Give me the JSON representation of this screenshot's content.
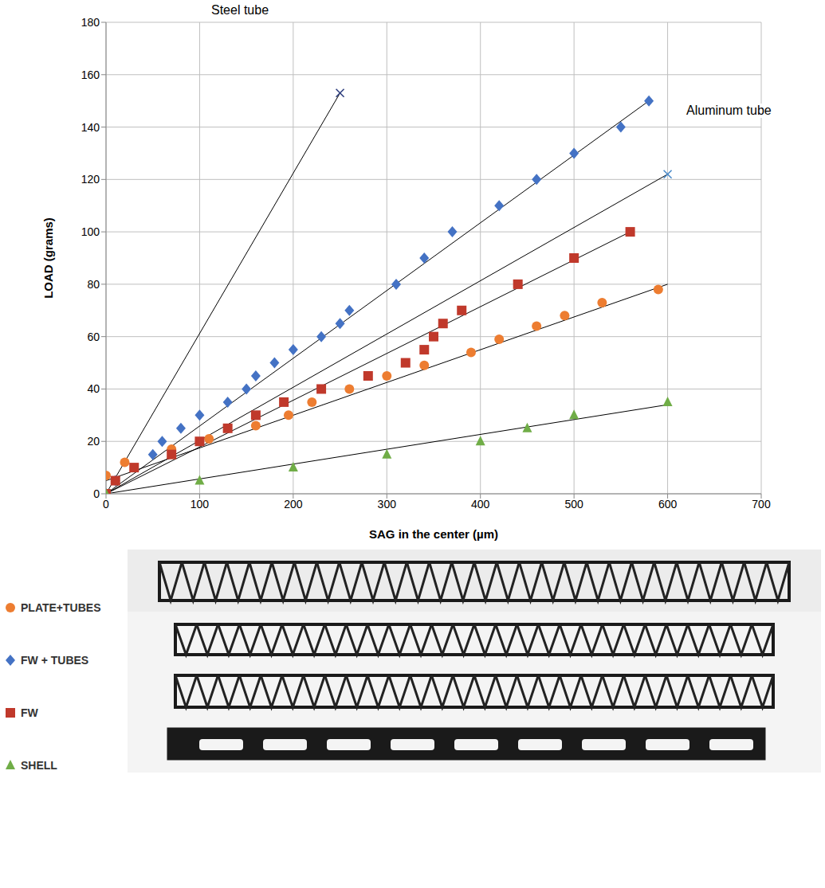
{
  "chart_data": {
    "type": "scatter",
    "x_label": "SAG in the center (µm)",
    "y_label": "LOAD (grams)",
    "xlim": [
      0,
      700
    ],
    "xticks": [
      0,
      100,
      200,
      300,
      400,
      500,
      600,
      700
    ],
    "ylim": [
      0,
      180
    ],
    "yticks": [
      0,
      20,
      40,
      60,
      80,
      100,
      120,
      140,
      160,
      180
    ],
    "grid": true,
    "legend": "bottom left",
    "series": [
      {
        "name": "PLATE+TUBES",
        "type": "scatter",
        "marker": "circle",
        "color": "#ed7d31",
        "x": [
          0,
          20,
          70,
          110,
          160,
          195,
          220,
          260,
          300,
          340,
          390,
          420,
          460,
          490,
          530,
          590
        ],
        "values": [
          7,
          12,
          17,
          21,
          26,
          30,
          35,
          40,
          45,
          49,
          54,
          59,
          64,
          68,
          73,
          78
        ],
        "fit": {
          "x": [
            0,
            600
          ],
          "values": [
            5,
            80
          ]
        }
      },
      {
        "name": "FW + TUBES",
        "type": "scatter",
        "marker": "diamond",
        "color": "#4472c4",
        "x": [
          0,
          10,
          50,
          60,
          80,
          100,
          130,
          150,
          160,
          180,
          200,
          230,
          250,
          260,
          310,
          340,
          370,
          420,
          460,
          500,
          550,
          580
        ],
        "values": [
          0,
          5,
          15,
          20,
          25,
          30,
          35,
          40,
          45,
          50,
          55,
          60,
          65,
          70,
          80,
          90,
          100,
          110,
          120,
          130,
          140,
          150
        ],
        "fit": {
          "x": [
            0,
            580
          ],
          "values": [
            0,
            150
          ]
        }
      },
      {
        "name": "FW",
        "type": "scatter",
        "marker": "square",
        "color": "#c0392b",
        "x": [
          0,
          10,
          30,
          70,
          100,
          130,
          160,
          190,
          230,
          280,
          320,
          340,
          350,
          360,
          380,
          440,
          500,
          560
        ],
        "values": [
          0,
          5,
          10,
          15,
          20,
          25,
          30,
          35,
          40,
          45,
          50,
          55,
          60,
          65,
          70,
          80,
          90,
          100
        ],
        "fit": {
          "x": [
            0,
            560
          ],
          "values": [
            0,
            100
          ]
        }
      },
      {
        "name": "SHELL",
        "type": "scatter",
        "marker": "triangle",
        "color": "#70ad47",
        "x": [
          0,
          100,
          200,
          300,
          400,
          450,
          500,
          600
        ],
        "values": [
          0,
          5,
          10,
          15,
          20,
          25,
          30,
          35
        ],
        "fit": {
          "x": [
            0,
            600
          ],
          "values": [
            0,
            34
          ]
        }
      },
      {
        "name": "Steel tube",
        "type": "line",
        "marker": "x",
        "color": "#2f3f7f",
        "x": [
          0,
          250
        ],
        "values": [
          0,
          153
        ]
      },
      {
        "name": "Aluminum tube",
        "type": "line",
        "marker": "x",
        "color": "#4a8ac9",
        "x": [
          0,
          600
        ],
        "values": [
          0,
          122
        ]
      }
    ]
  }
}
